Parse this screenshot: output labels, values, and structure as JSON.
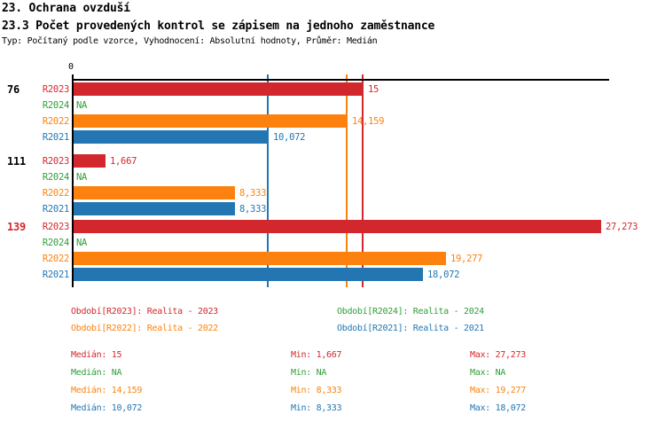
{
  "header": {
    "title": "23. Ochrana ovzduší",
    "subtitle": "23.3 Počet provedených kontrol se zápisem na jednoho zaměstnance",
    "meta": "Typ: Počítaný podle vzorce, Vyhodnocení: Absolutní hodnoty, Průměr: Medián"
  },
  "colors": {
    "red": "#d2282d",
    "green": "#2f9e38",
    "orange": "#fd810e",
    "blue": "#2376b2",
    "axis": "#000000"
  },
  "chart_data": {
    "type": "bar",
    "orientation": "horizontal",
    "axis_zero_label": "0",
    "na_label": "NA",
    "xlim": [
      0,
      27.6
    ],
    "grid": "median-lines-per-series",
    "categories": [
      {
        "label": "76",
        "label_color": "#000000"
      },
      {
        "label": "111",
        "label_color": "#000000"
      },
      {
        "label": "139",
        "label_color": "#d2282d"
      }
    ],
    "series": [
      {
        "name": "R2023",
        "color": "#d2282d",
        "values": [
          15,
          1.667,
          27.273
        ],
        "labels": [
          "15",
          "1,667",
          "27,273"
        ],
        "median": 15
      },
      {
        "name": "R2024",
        "color": "#2f9e38",
        "values": [
          null,
          null,
          null
        ],
        "labels": [
          "NA",
          "NA",
          "NA"
        ],
        "median": null
      },
      {
        "name": "R2022",
        "color": "#fd810e",
        "values": [
          14.159,
          8.333,
          19.277
        ],
        "labels": [
          "14,159",
          "8,333",
          "19,277"
        ],
        "median": 14.159
      },
      {
        "name": "R2021",
        "color": "#2376b2",
        "values": [
          10.072,
          8.333,
          18.072
        ],
        "labels": [
          "10,072",
          "8,333",
          "18,072"
        ],
        "median": 10.072
      }
    ]
  },
  "legend": {
    "items": [
      {
        "label": "Období[R2023]: Realita - 2023",
        "color": "#d2282d"
      },
      {
        "label": "Období[R2024]: Realita - 2024",
        "color": "#2f9e38"
      },
      {
        "label": "Období[R2022]: Realita - 2022",
        "color": "#fd810e"
      },
      {
        "label": "Období[R2021]: Realita - 2021",
        "color": "#2376b2"
      }
    ]
  },
  "stats": {
    "labels": {
      "median": "Medián",
      "min": "Min",
      "max": "Max"
    },
    "rows": [
      {
        "series": "R2023",
        "color": "#d2282d",
        "median": "15",
        "min": "1,667",
        "max": "27,273"
      },
      {
        "series": "R2024",
        "color": "#2f9e38",
        "median": "NA",
        "min": "NA",
        "max": "NA"
      },
      {
        "series": "R2022",
        "color": "#fd810e",
        "median": "14,159",
        "min": "8,333",
        "max": "19,277"
      },
      {
        "series": "R2021",
        "color": "#2376b2",
        "median": "10,072",
        "min": "8,333",
        "max": "18,072"
      }
    ]
  }
}
